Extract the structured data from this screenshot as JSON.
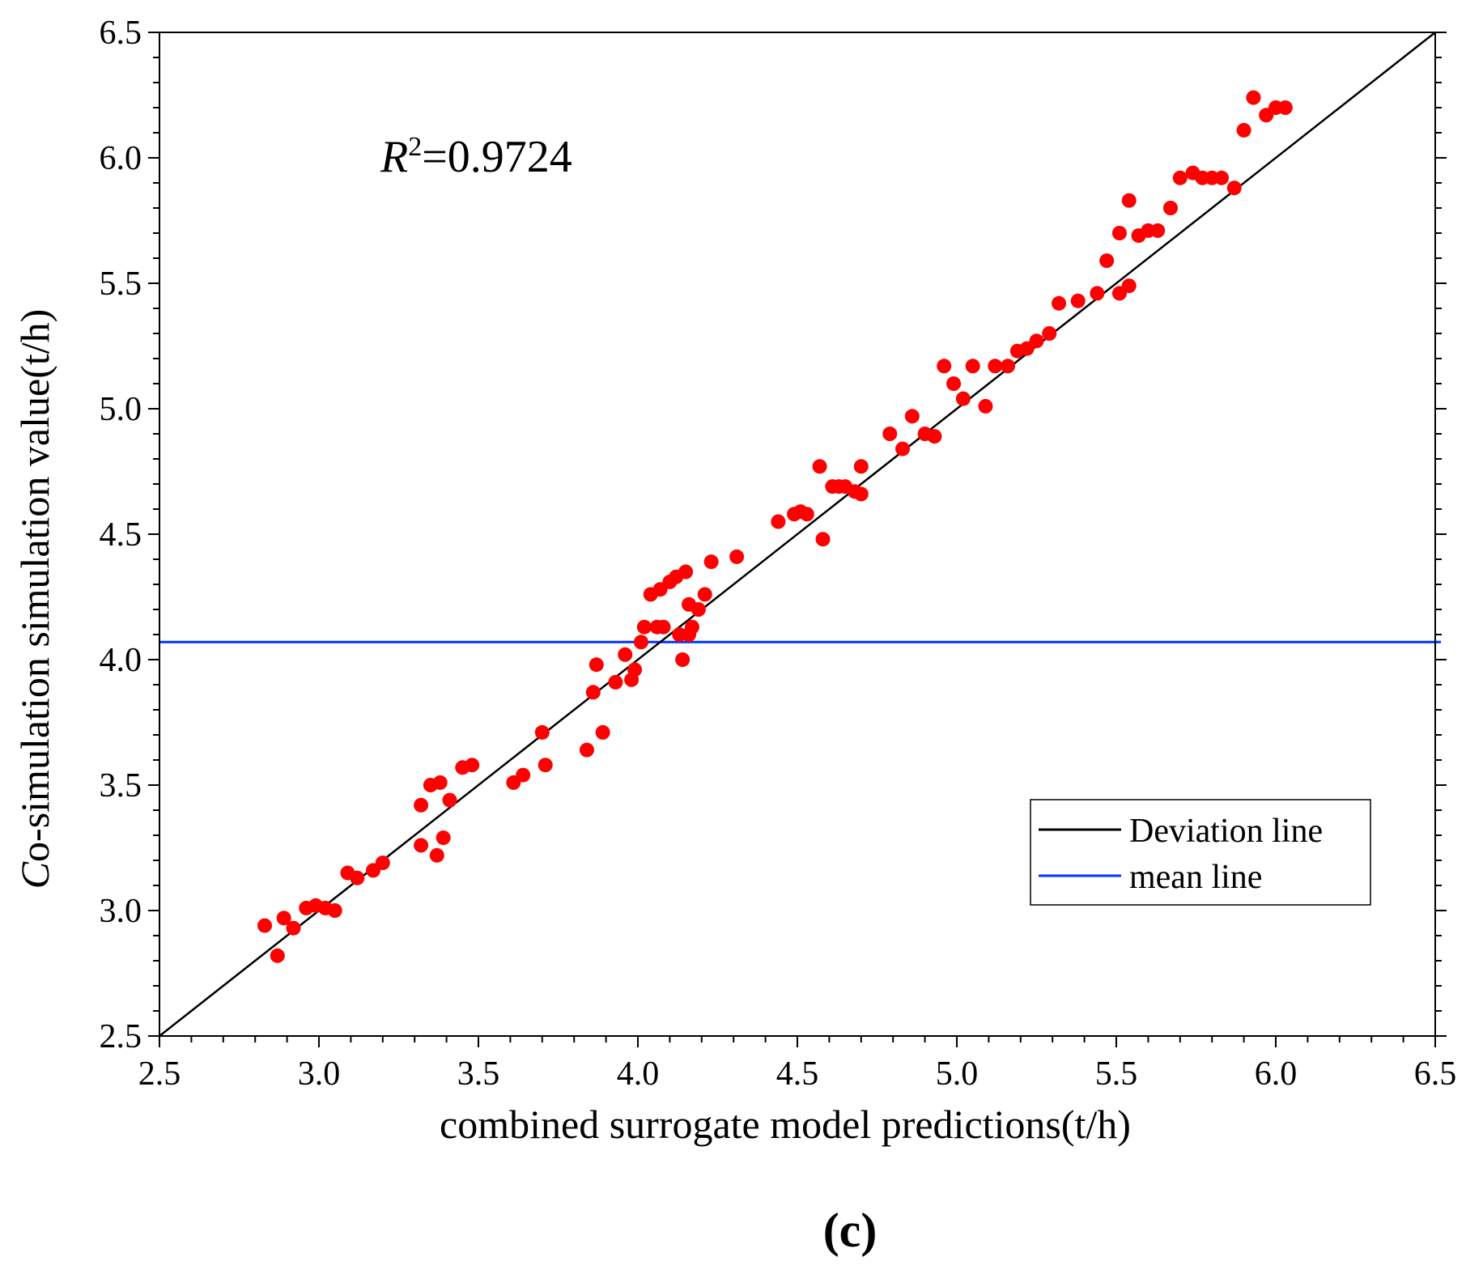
{
  "chart_data": {
    "type": "scatter",
    "xlabel": "combined surrogate model predictions(t/h)",
    "ylabel_prefix": "C",
    "ylabel": "o-simulation simulation value(t/h)",
    "panel_label": "(c)",
    "annotation": {
      "symbol": "R",
      "superscript": "2",
      "text": "=0.9724"
    },
    "xlim": [
      2.5,
      6.5
    ],
    "ylim": [
      2.5,
      6.5
    ],
    "x_ticks": [
      "2.5",
      "3.0",
      "3.5",
      "4.0",
      "4.5",
      "5.0",
      "5.5",
      "6.0",
      "6.5"
    ],
    "y_ticks": [
      "2.5",
      "3.0",
      "3.5",
      "4.0",
      "4.5",
      "5.0",
      "5.5",
      "6.0",
      "6.5"
    ],
    "colors": {
      "points": "#ff0000",
      "deviation_line": "#000000",
      "mean_line": "#0033ff"
    },
    "mean_value": 4.07,
    "legend": {
      "position": "bottom-right",
      "entries": [
        "Deviation line",
        "mean line"
      ]
    },
    "series": [
      {
        "name": "points",
        "points": [
          [
            2.83,
            2.94
          ],
          [
            2.87,
            2.82
          ],
          [
            2.89,
            2.97
          ],
          [
            2.92,
            2.93
          ],
          [
            2.96,
            3.01
          ],
          [
            2.99,
            3.02
          ],
          [
            3.02,
            3.01
          ],
          [
            3.05,
            3.0
          ],
          [
            3.09,
            3.15
          ],
          [
            3.12,
            3.13
          ],
          [
            3.17,
            3.16
          ],
          [
            3.2,
            3.19
          ],
          [
            3.32,
            3.42
          ],
          [
            3.32,
            3.26
          ],
          [
            3.35,
            3.5
          ],
          [
            3.37,
            3.22
          ],
          [
            3.38,
            3.51
          ],
          [
            3.39,
            3.29
          ],
          [
            3.41,
            3.44
          ],
          [
            3.45,
            3.57
          ],
          [
            3.48,
            3.58
          ],
          [
            3.61,
            3.51
          ],
          [
            3.64,
            3.54
          ],
          [
            3.7,
            3.71
          ],
          [
            3.71,
            3.58
          ],
          [
            3.84,
            3.64
          ],
          [
            3.86,
            3.87
          ],
          [
            3.87,
            3.98
          ],
          [
            3.89,
            3.71
          ],
          [
            3.93,
            3.91
          ],
          [
            3.96,
            4.02
          ],
          [
            3.98,
            3.92
          ],
          [
            3.99,
            3.96
          ],
          [
            4.01,
            4.07
          ],
          [
            4.02,
            4.13
          ],
          [
            4.04,
            4.26
          ],
          [
            4.06,
            4.13
          ],
          [
            4.07,
            4.28
          ],
          [
            4.08,
            4.13
          ],
          [
            4.1,
            4.31
          ],
          [
            4.12,
            4.33
          ],
          [
            4.13,
            4.1
          ],
          [
            4.14,
            4.0
          ],
          [
            4.15,
            4.35
          ],
          [
            4.16,
            4.22
          ],
          [
            4.16,
            4.1
          ],
          [
            4.17,
            4.13
          ],
          [
            4.19,
            4.2
          ],
          [
            4.21,
            4.26
          ],
          [
            4.23,
            4.39
          ],
          [
            4.31,
            4.41
          ],
          [
            4.44,
            4.55
          ],
          [
            4.49,
            4.58
          ],
          [
            4.51,
            4.59
          ],
          [
            4.53,
            4.58
          ],
          [
            4.57,
            4.77
          ],
          [
            4.58,
            4.48
          ],
          [
            4.61,
            4.69
          ],
          [
            4.63,
            4.69
          ],
          [
            4.65,
            4.69
          ],
          [
            4.68,
            4.67
          ],
          [
            4.7,
            4.66
          ],
          [
            4.7,
            4.77
          ],
          [
            4.79,
            4.9
          ],
          [
            4.83,
            4.84
          ],
          [
            4.86,
            4.97
          ],
          [
            4.9,
            4.9
          ],
          [
            4.93,
            4.89
          ],
          [
            4.96,
            5.17
          ],
          [
            4.99,
            5.1
          ],
          [
            5.02,
            5.04
          ],
          [
            5.05,
            5.17
          ],
          [
            5.09,
            5.01
          ],
          [
            5.12,
            5.17
          ],
          [
            5.16,
            5.17
          ],
          [
            5.19,
            5.23
          ],
          [
            5.22,
            5.24
          ],
          [
            5.25,
            5.27
          ],
          [
            5.29,
            5.3
          ],
          [
            5.32,
            5.42
          ],
          [
            5.38,
            5.43
          ],
          [
            5.44,
            5.46
          ],
          [
            5.47,
            5.59
          ],
          [
            5.51,
            5.46
          ],
          [
            5.51,
            5.7
          ],
          [
            5.54,
            5.49
          ],
          [
            5.54,
            5.83
          ],
          [
            5.57,
            5.69
          ],
          [
            5.6,
            5.71
          ],
          [
            5.63,
            5.71
          ],
          [
            5.67,
            5.8
          ],
          [
            5.7,
            5.92
          ],
          [
            5.74,
            5.94
          ],
          [
            5.77,
            5.92
          ],
          [
            5.8,
            5.92
          ],
          [
            5.83,
            5.92
          ],
          [
            5.87,
            5.88
          ],
          [
            5.9,
            6.11
          ],
          [
            5.93,
            6.24
          ],
          [
            5.97,
            6.17
          ],
          [
            6.0,
            6.2
          ],
          [
            6.03,
            6.2
          ]
        ]
      }
    ]
  }
}
